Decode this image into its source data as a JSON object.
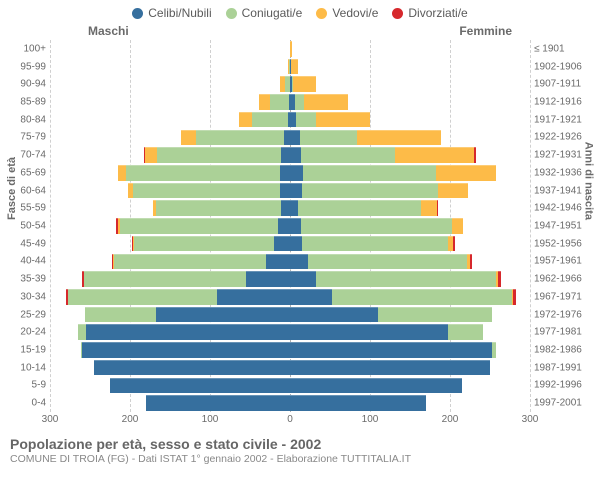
{
  "chart": {
    "type": "population-pyramid",
    "background_color": "#ffffff",
    "grid_color": "#d0d0d0",
    "text_color": "#6a6a6a",
    "legend": [
      {
        "label": "Celibi/Nubili",
        "color": "#366f9e"
      },
      {
        "label": "Coniugati/e",
        "color": "#abd197"
      },
      {
        "label": "Vedovi/e",
        "color": "#fdbb48"
      },
      {
        "label": "Divorziati/e",
        "color": "#d6282c"
      }
    ],
    "gender_labels": {
      "male": "Maschi",
      "female": "Femmine"
    },
    "x_ticks": [
      300,
      200,
      100,
      0,
      100,
      200,
      300
    ],
    "x_max": 300,
    "y_axis_left_title": "Fasce di età",
    "y_axis_right_title": "Anni di nascita",
    "age_bands": [
      {
        "age": "0-4",
        "year": "1997-2001",
        "m": {
          "c": 180,
          "s": 0,
          "v": 0,
          "d": 0
        },
        "f": {
          "c": 170,
          "s": 0,
          "v": 0,
          "d": 0
        }
      },
      {
        "age": "5-9",
        "year": "1992-1996",
        "m": {
          "c": 225,
          "s": 0,
          "v": 0,
          "d": 0
        },
        "f": {
          "c": 215,
          "s": 0,
          "v": 0,
          "d": 0
        }
      },
      {
        "age": "10-14",
        "year": "1987-1991",
        "m": {
          "c": 245,
          "s": 0,
          "v": 0,
          "d": 0
        },
        "f": {
          "c": 250,
          "s": 0,
          "v": 0,
          "d": 0
        }
      },
      {
        "age": "15-19",
        "year": "1982-1986",
        "m": {
          "c": 260,
          "s": 1,
          "v": 0,
          "d": 0
        },
        "f": {
          "c": 252,
          "s": 6,
          "v": 0,
          "d": 0
        }
      },
      {
        "age": "20-24",
        "year": "1977-1981",
        "m": {
          "c": 255,
          "s": 10,
          "v": 0,
          "d": 0
        },
        "f": {
          "c": 198,
          "s": 43,
          "v": 0,
          "d": 0
        }
      },
      {
        "age": "25-29",
        "year": "1972-1976",
        "m": {
          "c": 168,
          "s": 88,
          "v": 0,
          "d": 0
        },
        "f": {
          "c": 110,
          "s": 142,
          "v": 0,
          "d": 0
        }
      },
      {
        "age": "30-34",
        "year": "1967-1971",
        "m": {
          "c": 91,
          "s": 187,
          "v": 0,
          "d": 2
        },
        "f": {
          "c": 53,
          "s": 225,
          "v": 1,
          "d": 4
        }
      },
      {
        "age": "35-39",
        "year": "1962-1966",
        "m": {
          "c": 55,
          "s": 203,
          "v": 0,
          "d": 2
        },
        "f": {
          "c": 33,
          "s": 225,
          "v": 2,
          "d": 4
        }
      },
      {
        "age": "40-44",
        "year": "1957-1961",
        "m": {
          "c": 30,
          "s": 190,
          "v": 1,
          "d": 1
        },
        "f": {
          "c": 22,
          "s": 199,
          "v": 4,
          "d": 2
        }
      },
      {
        "age": "45-49",
        "year": "1952-1956",
        "m": {
          "c": 20,
          "s": 175,
          "v": 1,
          "d": 1
        },
        "f": {
          "c": 15,
          "s": 182,
          "v": 7,
          "d": 2
        }
      },
      {
        "age": "50-54",
        "year": "1947-1951",
        "m": {
          "c": 15,
          "s": 197,
          "v": 3,
          "d": 2
        },
        "f": {
          "c": 14,
          "s": 188,
          "v": 14,
          "d": 0
        }
      },
      {
        "age": "55-59",
        "year": "1942-1946",
        "m": {
          "c": 11,
          "s": 157,
          "v": 3,
          "d": 0
        },
        "f": {
          "c": 10,
          "s": 154,
          "v": 20,
          "d": 1
        }
      },
      {
        "age": "60-64",
        "year": "1937-1941",
        "m": {
          "c": 13,
          "s": 183,
          "v": 7,
          "d": 0
        },
        "f": {
          "c": 15,
          "s": 170,
          "v": 38,
          "d": 0
        }
      },
      {
        "age": "65-69",
        "year": "1932-1936",
        "m": {
          "c": 12,
          "s": 193,
          "v": 10,
          "d": 0
        },
        "f": {
          "c": 16,
          "s": 166,
          "v": 75,
          "d": 0
        }
      },
      {
        "age": "70-74",
        "year": "1927-1931",
        "m": {
          "c": 11,
          "s": 155,
          "v": 15,
          "d": 2
        },
        "f": {
          "c": 14,
          "s": 117,
          "v": 99,
          "d": 2
        }
      },
      {
        "age": "75-79",
        "year": "1922-1926",
        "m": {
          "c": 7,
          "s": 111,
          "v": 18,
          "d": 0
        },
        "f": {
          "c": 13,
          "s": 71,
          "v": 105,
          "d": 0
        }
      },
      {
        "age": "80-84",
        "year": "1917-1921",
        "m": {
          "c": 3,
          "s": 45,
          "v": 16,
          "d": 0
        },
        "f": {
          "c": 8,
          "s": 25,
          "v": 67,
          "d": 0
        }
      },
      {
        "age": "85-89",
        "year": "1912-1916",
        "m": {
          "c": 1,
          "s": 24,
          "v": 14,
          "d": 0
        },
        "f": {
          "c": 6,
          "s": 11,
          "v": 55,
          "d": 0
        }
      },
      {
        "age": "90-94",
        "year": "1907-1911",
        "m": {
          "c": 0,
          "s": 6,
          "v": 7,
          "d": 0
        },
        "f": {
          "c": 2,
          "s": 2,
          "v": 28,
          "d": 0
        }
      },
      {
        "age": "95-99",
        "year": "1902-1906",
        "m": {
          "c": 0,
          "s": 1,
          "v": 2,
          "d": 0
        },
        "f": {
          "c": 1,
          "s": 0,
          "v": 9,
          "d": 0
        }
      },
      {
        "age": "100+",
        "year": "≤ 1901",
        "m": {
          "c": 0,
          "s": 0,
          "v": 0,
          "d": 0
        },
        "f": {
          "c": 0,
          "s": 0,
          "v": 2,
          "d": 0
        }
      }
    ],
    "row_fill": 0.88,
    "colors": {
      "celibi": "#366f9e",
      "coniugati": "#abd197",
      "vedovi": "#fdbb48",
      "divorziati": "#d6282c"
    }
  },
  "footer": {
    "title": "Popolazione per età, sesso e stato civile - 2002",
    "sub": "COMUNE DI TROIA (FG) - Dati ISTAT 1° gennaio 2002 - Elaborazione TUTTITALIA.IT"
  }
}
